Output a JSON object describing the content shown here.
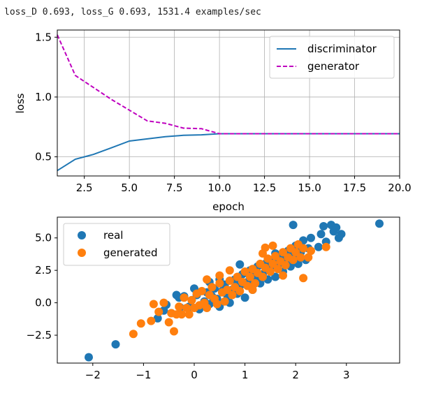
{
  "log_line": "loss_D 0.693, loss_G 0.693, 1531.4 examples/sec",
  "colors": {
    "blue": "#1f77b4",
    "orange": "#ff7f0e",
    "magenta": "#bf00bf",
    "grid": "#b0b0b0"
  },
  "chart_data": [
    {
      "type": "line",
      "xlabel": "epoch",
      "ylabel": "loss",
      "xlim": [
        1,
        20
      ],
      "ylim": [
        0.34,
        1.56
      ],
      "xticks": [
        2.5,
        5.0,
        7.5,
        10.0,
        12.5,
        15.0,
        17.5,
        20.0
      ],
      "xtick_labels": [
        "2.5",
        "5.0",
        "7.5",
        "10.0",
        "12.5",
        "15.0",
        "17.5",
        "20.0"
      ],
      "yticks": [
        0.5,
        1.0,
        1.5
      ],
      "ytick_labels": [
        "0.5",
        "1.0",
        "1.5"
      ],
      "grid": true,
      "legend": "top-right",
      "x": [
        1,
        2,
        3,
        4,
        5,
        6,
        7,
        8,
        9,
        10,
        11,
        12,
        13,
        14,
        15,
        16,
        17,
        18,
        19,
        20
      ],
      "series": [
        {
          "name": "discriminator",
          "style": "solid",
          "color": "#1f77b4",
          "values": [
            0.385,
            0.48,
            0.52,
            0.575,
            0.632,
            0.65,
            0.668,
            0.68,
            0.684,
            0.693,
            0.693,
            0.693,
            0.693,
            0.693,
            0.693,
            0.693,
            0.693,
            0.693,
            0.693,
            0.693
          ]
        },
        {
          "name": "generator",
          "style": "dashed",
          "color": "#bf00bf",
          "values": [
            1.52,
            1.18,
            1.08,
            0.98,
            0.89,
            0.8,
            0.78,
            0.74,
            0.735,
            0.693,
            0.693,
            0.693,
            0.693,
            0.693,
            0.693,
            0.693,
            0.693,
            0.693,
            0.693,
            0.693
          ]
        }
      ]
    },
    {
      "type": "scatter",
      "xlim": [
        -2.7,
        4.05
      ],
      "ylim": [
        -4.65,
        6.6
      ],
      "xticks": [
        -2,
        -1,
        0,
        1,
        2,
        3
      ],
      "xtick_labels": [
        "−2",
        "−1",
        "0",
        "1",
        "2",
        "3"
      ],
      "yticks": [
        -2.5,
        0.0,
        2.5,
        5.0
      ],
      "ytick_labels": [
        "−2.5",
        "0.0",
        "2.5",
        "5.0"
      ],
      "grid": false,
      "legend": "top-left",
      "series": [
        {
          "name": "real",
          "color": "#1f77b4",
          "points": [
            [
              -2.08,
              -4.2
            ],
            [
              -1.55,
              -3.2
            ],
            [
              -0.72,
              -1.2
            ],
            [
              -0.6,
              -0.6
            ],
            [
              -0.45,
              -0.8
            ],
            [
              -0.3,
              0.4
            ],
            [
              -0.28,
              -0.35
            ],
            [
              -0.2,
              0.5
            ],
            [
              -0.1,
              -0.3
            ],
            [
              -0.05,
              0.2
            ],
            [
              0.05,
              0.6
            ],
            [
              0.1,
              -0.5
            ],
            [
              0.2,
              0.1
            ],
            [
              0.25,
              0.8
            ],
            [
              0.3,
              -0.1
            ],
            [
              0.35,
              0.5
            ],
            [
              0.4,
              1.1
            ],
            [
              0.45,
              0.3
            ],
            [
              0.5,
              -0.3
            ],
            [
              0.55,
              0.9
            ],
            [
              0.6,
              1.4
            ],
            [
              0.65,
              0.6
            ],
            [
              0.7,
              0.0
            ],
            [
              0.75,
              1.0
            ],
            [
              0.8,
              1.8
            ],
            [
              0.85,
              0.7
            ],
            [
              0.9,
              1.3
            ],
            [
              0.95,
              2.2
            ],
            [
              1.0,
              0.4
            ],
            [
              1.05,
              1.6
            ],
            [
              1.1,
              2.5
            ],
            [
              1.15,
              1.0
            ],
            [
              1.2,
              1.9
            ],
            [
              1.25,
              2.8
            ],
            [
              1.3,
              1.5
            ],
            [
              1.35,
              2.2
            ],
            [
              1.4,
              3.0
            ],
            [
              1.45,
              1.8
            ],
            [
              1.5,
              2.6
            ],
            [
              1.55,
              3.3
            ],
            [
              1.6,
              2.0
            ],
            [
              1.65,
              2.9
            ],
            [
              1.7,
              3.6
            ],
            [
              1.75,
              2.4
            ],
            [
              1.8,
              3.2
            ],
            [
              1.85,
              4.0
            ],
            [
              1.9,
              2.8
            ],
            [
              1.95,
              3.7
            ],
            [
              2.0,
              4.4
            ],
            [
              2.05,
              3.0
            ],
            [
              2.1,
              3.9
            ],
            [
              2.15,
              4.8
            ],
            [
              2.2,
              3.3
            ],
            [
              2.25,
              4.2
            ],
            [
              2.3,
              5.0
            ],
            [
              2.45,
              4.3
            ],
            [
              2.5,
              5.3
            ],
            [
              2.55,
              5.9
            ],
            [
              2.6,
              4.7
            ],
            [
              2.7,
              6.0
            ],
            [
              2.75,
              5.5
            ],
            [
              2.8,
              5.8
            ],
            [
              2.85,
              5.0
            ],
            [
              2.9,
              5.3
            ],
            [
              1.95,
              6.0
            ],
            [
              3.65,
              6.1
            ],
            [
              0.9,
              2.95
            ],
            [
              1.15,
              2.3
            ],
            [
              0.5,
              1.8
            ],
            [
              0.0,
              1.1
            ],
            [
              -0.35,
              0.6
            ],
            [
              -0.55,
              -0.15
            ],
            [
              0.3,
              1.6
            ],
            [
              1.6,
              3.8
            ]
          ]
        },
        {
          "name": "generated",
          "color": "#ff7f0e",
          "points": [
            [
              -1.2,
              -2.4
            ],
            [
              -1.05,
              -1.6
            ],
            [
              -0.85,
              -1.4
            ],
            [
              -0.7,
              -0.7
            ],
            [
              -0.6,
              0.0
            ],
            [
              -0.5,
              -1.5
            ],
            [
              -0.45,
              -0.8
            ],
            [
              -0.4,
              -2.2
            ],
            [
              -0.35,
              -0.9
            ],
            [
              -0.3,
              -0.3
            ],
            [
              -0.25,
              -0.9
            ],
            [
              -0.2,
              0.4
            ],
            [
              -0.15,
              -0.4
            ],
            [
              -0.1,
              -0.9
            ],
            [
              -0.05,
              0.2
            ],
            [
              0.0,
              -0.4
            ],
            [
              0.05,
              0.7
            ],
            [
              0.1,
              -0.2
            ],
            [
              0.15,
              0.9
            ],
            [
              0.2,
              0.0
            ],
            [
              0.25,
              -0.4
            ],
            [
              0.3,
              0.6
            ],
            [
              0.35,
              1.2
            ],
            [
              0.4,
              0.3
            ],
            [
              0.45,
              -0.1
            ],
            [
              0.5,
              1.5
            ],
            [
              0.55,
              0.8
            ],
            [
              0.6,
              0.1
            ],
            [
              0.65,
              1.0
            ],
            [
              0.7,
              1.7
            ],
            [
              0.75,
              0.6
            ],
            [
              0.8,
              1.2
            ],
            [
              0.85,
              2.0
            ],
            [
              0.9,
              0.9
            ],
            [
              0.95,
              1.6
            ],
            [
              1.0,
              2.4
            ],
            [
              1.05,
              1.3
            ],
            [
              1.1,
              2.0
            ],
            [
              1.15,
              2.6
            ],
            [
              1.2,
              1.5
            ],
            [
              1.25,
              2.3
            ],
            [
              1.3,
              3.0
            ],
            [
              1.35,
              2.0
            ],
            [
              1.4,
              2.7
            ],
            [
              1.45,
              3.4
            ],
            [
              1.5,
              2.4
            ],
            [
              1.55,
              3.0
            ],
            [
              1.6,
              3.6
            ],
            [
              1.65,
              2.6
            ],
            [
              1.7,
              3.2
            ],
            [
              1.75,
              3.9
            ],
            [
              1.8,
              2.9
            ],
            [
              1.85,
              3.5
            ],
            [
              1.9,
              4.2
            ],
            [
              1.95,
              3.3
            ],
            [
              2.0,
              3.9
            ],
            [
              2.05,
              4.5
            ],
            [
              2.1,
              3.5
            ],
            [
              2.15,
              4.2
            ],
            [
              2.25,
              3.5
            ],
            [
              2.3,
              4.0
            ],
            [
              2.15,
              1.9
            ],
            [
              2.6,
              4.3
            ],
            [
              1.55,
              4.4
            ],
            [
              1.4,
              4.25
            ],
            [
              1.35,
              3.8
            ],
            [
              0.5,
              2.1
            ],
            [
              0.7,
              2.5
            ],
            [
              -0.8,
              -0.1
            ],
            [
              1.15,
              1.0
            ],
            [
              0.25,
              1.8
            ],
            [
              1.75,
              2.1
            ]
          ]
        }
      ]
    }
  ]
}
